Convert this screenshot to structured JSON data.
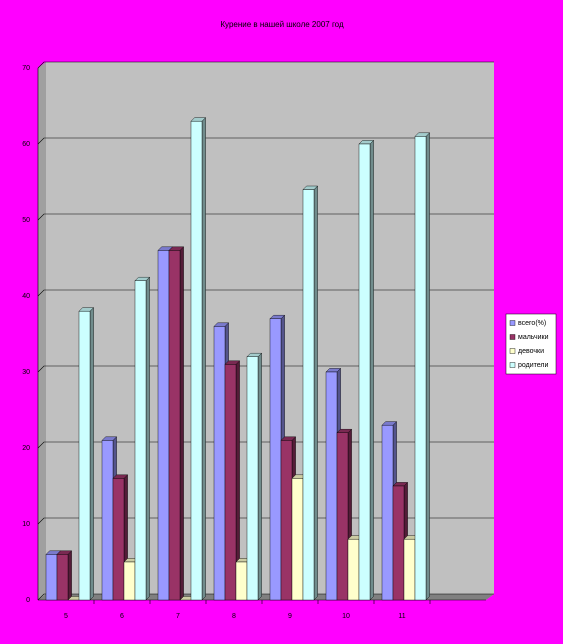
{
  "chart_data": {
    "type": "bar",
    "title": "Курение в нашей школе 2007 год",
    "categories": [
      "5",
      "6",
      "7",
      "8",
      "9",
      "10",
      "11"
    ],
    "series": [
      {
        "name": "всего(%)",
        "color": "#9999ff",
        "values": [
          6,
          21,
          46,
          36,
          37,
          30,
          23
        ]
      },
      {
        "name": "мальчики",
        "color": "#993366",
        "values": [
          6,
          16,
          46,
          31,
          21,
          22,
          15
        ]
      },
      {
        "name": "девочки",
        "color": "#ffffcc",
        "values": [
          0,
          5,
          0,
          5,
          16,
          8,
          8
        ]
      },
      {
        "name": "родители",
        "color": "#ccffff",
        "values": [
          38,
          42,
          63,
          32,
          54,
          60,
          61
        ]
      }
    ],
    "ylim": [
      0,
      70
    ],
    "yticks": [
      0,
      10,
      20,
      30,
      40,
      50,
      60,
      70
    ],
    "grid": true,
    "legend": "right"
  }
}
